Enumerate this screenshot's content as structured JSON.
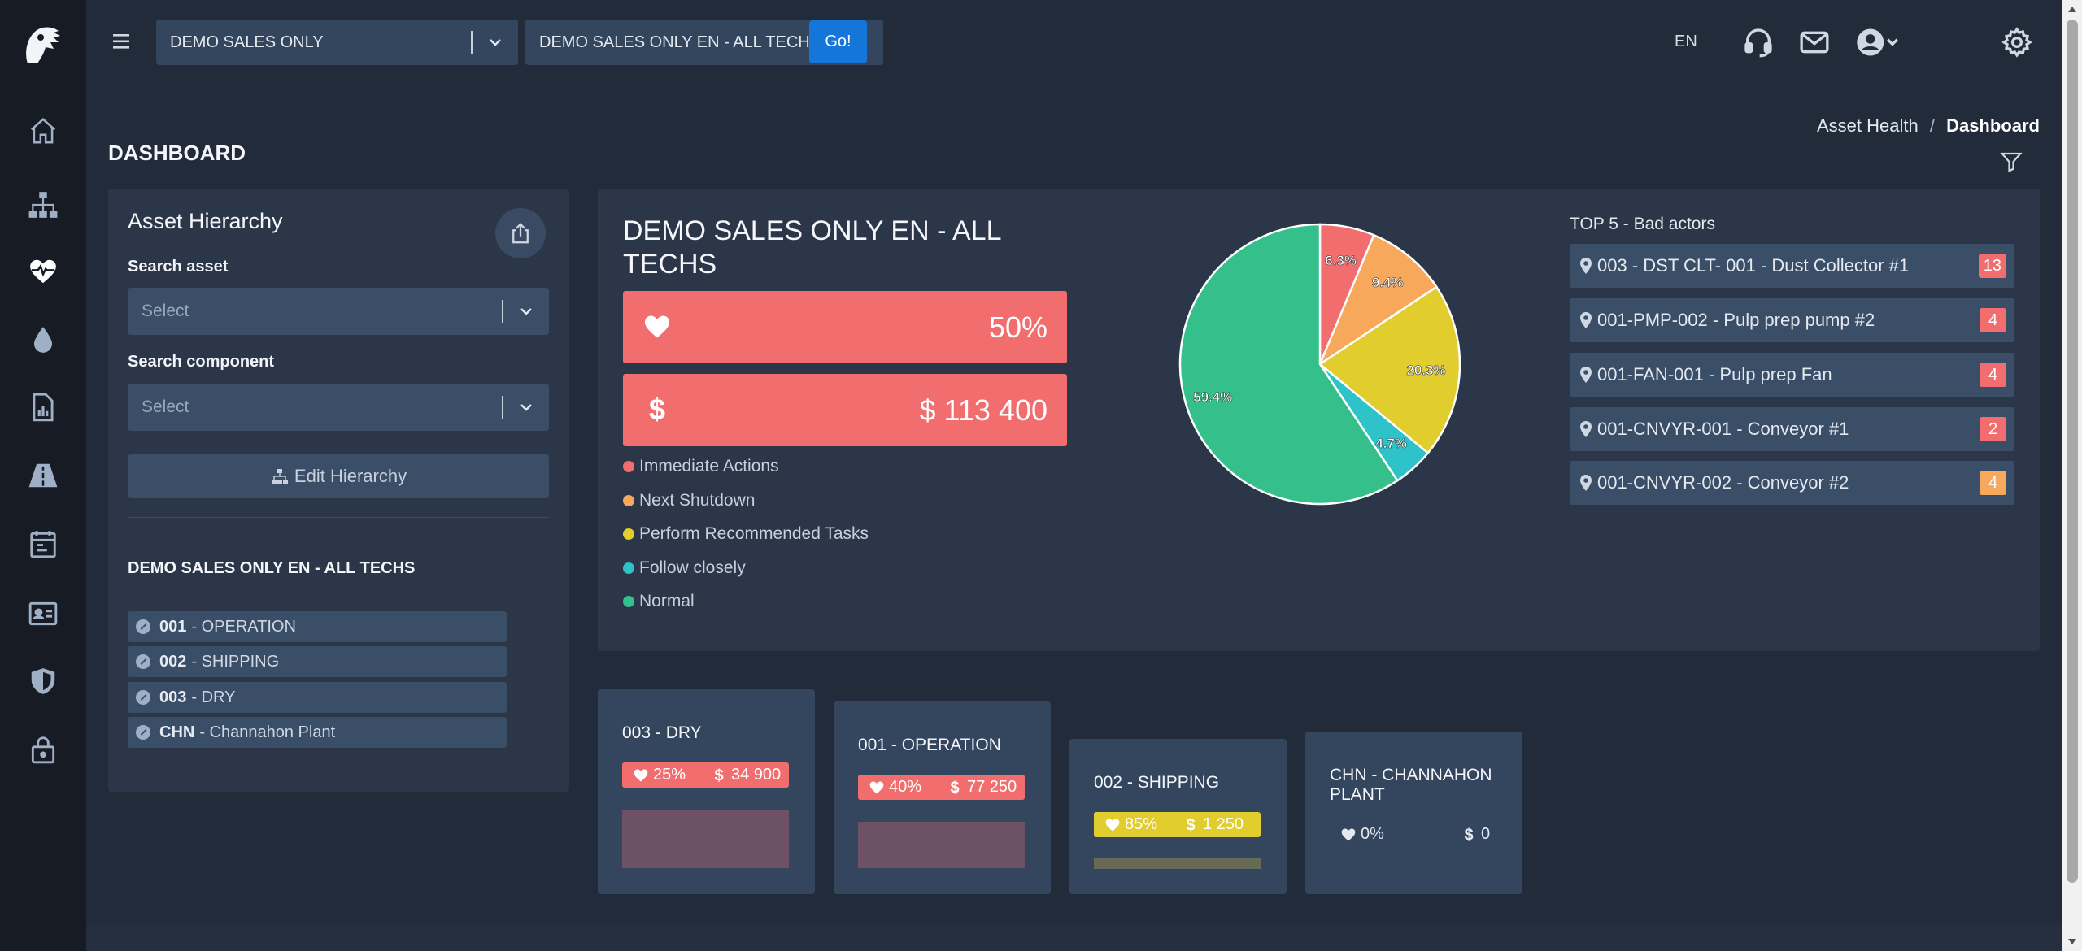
{
  "topbar": {
    "site_select": "DEMO SALES ONLY",
    "tech_select": "DEMO SALES ONLY EN - ALL TECHS",
    "go_label": "Go!",
    "language": "EN"
  },
  "page": {
    "title": "DASHBOARD",
    "breadcrumb": [
      "Asset Health",
      "/",
      "Dashboard"
    ]
  },
  "asset_hierarchy": {
    "title": "Asset Hierarchy",
    "search_asset_label": "Search asset",
    "search_asset_placeholder": "Select",
    "search_component_label": "Search component",
    "search_component_placeholder": "Select",
    "edit_label": "Edit Hierarchy",
    "tree_title": "DEMO SALES ONLY EN - ALL TECHS",
    "items": [
      {
        "code": "001",
        "name": "- OPERATION"
      },
      {
        "code": "002",
        "name": "- SHIPPING"
      },
      {
        "code": "003",
        "name": "- DRY"
      },
      {
        "code": "CHN",
        "name": "- Channahon Plant"
      }
    ]
  },
  "summary": {
    "title": "DEMO SALES ONLY EN - ALL TECHS",
    "health": "50%",
    "cost": "$ 113 400",
    "legend": [
      {
        "label": "Immediate Actions",
        "color": "#f26d6d"
      },
      {
        "label": "Next Shutdown",
        "color": "#f7a85a"
      },
      {
        "label": "Perform Recommended Tasks",
        "color": "#e2cd2f"
      },
      {
        "label": "Follow closely",
        "color": "#2ec3c8"
      },
      {
        "label": "Normal",
        "color": "#35c08b"
      }
    ]
  },
  "chart_data": {
    "type": "pie",
    "slices": [
      {
        "label": "Immediate Actions",
        "value": 6.3,
        "display": "6.3%",
        "color": "#f26d6d"
      },
      {
        "label": "Next Shutdown",
        "value": 9.4,
        "display": "9.4%",
        "color": "#f7a85a"
      },
      {
        "label": "Perform Recommended Tasks",
        "value": 20.3,
        "display": "20.3%",
        "color": "#e2cd2f"
      },
      {
        "label": "Follow closely",
        "value": 4.7,
        "display": "4.7%",
        "color": "#2ec3c8"
      },
      {
        "label": "Normal",
        "value": 59.4,
        "display": "59.4%",
        "color": "#35c08b"
      }
    ]
  },
  "top5": {
    "title": "TOP 5 - Bad actors",
    "items": [
      {
        "label": "003 - DST CLT- 001 - Dust Collector #1",
        "count": "13",
        "color": "#f26d6d"
      },
      {
        "label": "001-PMP-002 - Pulp prep pump #2",
        "count": "4",
        "color": "#f26d6d"
      },
      {
        "label": "001-FAN-001 - Pulp prep Fan",
        "count": "4",
        "color": "#f26d6d"
      },
      {
        "label": "001-CNVYR-001 - Conveyor #1",
        "count": "2",
        "color": "#f26d6d"
      },
      {
        "label": "001-CNVYR-002 - Conveyor #2",
        "count": "4",
        "color": "#f7a85a"
      }
    ]
  },
  "cards": [
    {
      "title": "003 - DRY",
      "health": "25%",
      "cost": "34 900",
      "color": "#f26d6d",
      "chart_color": "#6d5266"
    },
    {
      "title": "001 - OPERATION",
      "health": "40%",
      "cost": "77 250",
      "color": "#f26d6d",
      "chart_color": "#6d5266"
    },
    {
      "title": "002 - SHIPPING",
      "health": "85%",
      "cost": "1 250",
      "color": "#e2cd2f",
      "chart_color": "#666a56"
    },
    {
      "title": "CHN - CHANNAHON PLANT",
      "health": "0%",
      "cost": "0"
    }
  ],
  "icons": {
    "rail": [
      "home-icon",
      "hierarchy-icon",
      "heartbeat-icon",
      "drop-icon",
      "report-icon",
      "road-icon",
      "calendar-icon",
      "id-card-icon",
      "shield-icon",
      "lock-icon"
    ],
    "topbar": [
      "menu-icon",
      "headset-icon",
      "mail-icon",
      "user-icon",
      "gear-icon"
    ]
  }
}
